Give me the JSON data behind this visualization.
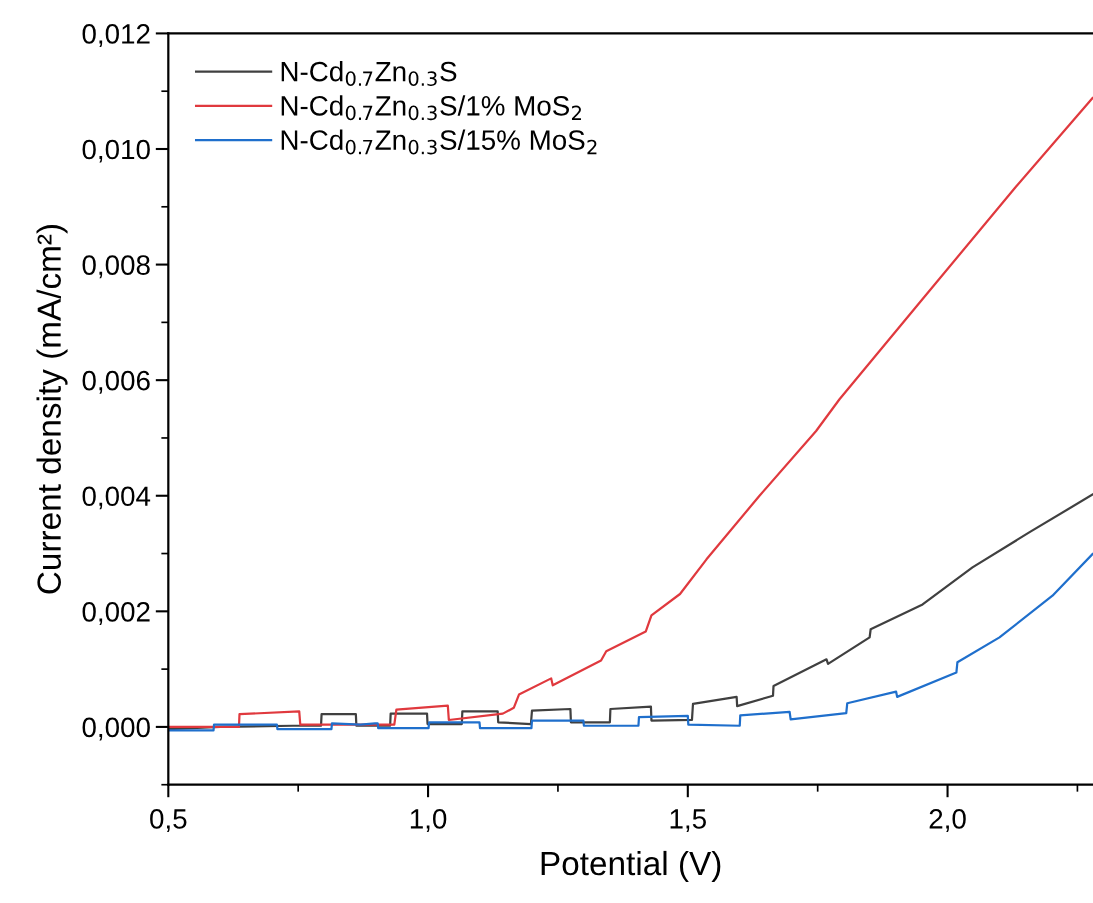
{
  "chart_data": {
    "type": "line",
    "xlabel": "Potential (V)",
    "ylabel": "Current density (mA/cm²)",
    "xlim": [
      0.5,
      2.28
    ],
    "ylim": [
      -0.001,
      0.012
    ],
    "xticks": [
      {
        "value": 0.5,
        "label": "0,5"
      },
      {
        "value": 0.75,
        "label": null
      },
      {
        "value": 1.0,
        "label": "1,0"
      },
      {
        "value": 1.25,
        "label": null
      },
      {
        "value": 1.5,
        "label": "1,5"
      },
      {
        "value": 1.75,
        "label": null
      },
      {
        "value": 2.0,
        "label": "2,0"
      },
      {
        "value": 2.25,
        "label": null
      }
    ],
    "yticks": [
      {
        "value": -0.001,
        "label": null
      },
      {
        "value": 0.0,
        "label": "0,000"
      },
      {
        "value": 0.001,
        "label": null
      },
      {
        "value": 0.002,
        "label": "0,002"
      },
      {
        "value": 0.003,
        "label": null
      },
      {
        "value": 0.004,
        "label": "0,004"
      },
      {
        "value": 0.005,
        "label": null
      },
      {
        "value": 0.006,
        "label": "0,006"
      },
      {
        "value": 0.007,
        "label": null
      },
      {
        "value": 0.008,
        "label": "0,008"
      },
      {
        "value": 0.009,
        "label": null
      },
      {
        "value": 0.01,
        "label": "0,010"
      },
      {
        "value": 0.011,
        "label": null
      },
      {
        "value": 0.012,
        "label": "0,012"
      }
    ],
    "grid": false,
    "legend": "top left",
    "marker": "none",
    "line_style": "solid",
    "series": [
      {
        "name": "N-Cd$_{0.7}$Zn$_{0.3}$S",
        "color": "#404040",
        "x": [
          0.5,
          0.6,
          0.74,
          0.794,
          0.795,
          0.861,
          0.862,
          0.927,
          0.928,
          0.998,
          0.999,
          1.065,
          1.066,
          1.134,
          1.135,
          1.198,
          1.2,
          1.274,
          1.275,
          1.35,
          1.351,
          1.429,
          1.43,
          1.508,
          1.51,
          1.594,
          1.595,
          1.664,
          1.665,
          1.767,
          1.77,
          1.85,
          1.852,
          1.952,
          2.048,
          2.158,
          2.279
        ],
        "values": [
          -4e-05,
          0.0,
          2e-05,
          2e-05,
          0.00022,
          0.00022,
          2e-05,
          2e-05,
          0.00023,
          0.00023,
          5e-05,
          5e-05,
          0.00027,
          0.00027,
          8e-05,
          5e-05,
          0.00028,
          0.00031,
          8e-05,
          8e-05,
          0.00031,
          0.00035,
          0.00011,
          0.00012,
          0.0004,
          0.00052,
          0.00036,
          0.00054,
          0.00071,
          0.00117,
          0.00109,
          0.00155,
          0.00169,
          0.00212,
          0.00276,
          0.00337,
          0.00402
        ]
      },
      {
        "name": "N-Cd$_{0.7}$Zn$_{0.3}$S/1% MoS$_{2}$",
        "color": "#e0393e",
        "x": [
          0.5,
          0.636,
          0.637,
          0.752,
          0.754,
          0.935,
          0.939,
          1.038,
          1.04,
          1.144,
          1.165,
          1.175,
          1.237,
          1.24,
          1.333,
          1.343,
          1.419,
          1.43,
          1.485,
          1.536,
          1.638,
          1.747,
          1.792,
          1.946,
          2.132,
          2.279
        ],
        "values": [
          0.0,
          0.0,
          0.00022,
          0.00027,
          4e-05,
          4e-05,
          0.0003,
          0.00037,
          0.00012,
          0.00023,
          0.00033,
          0.00056,
          0.00084,
          0.00072,
          0.00115,
          0.00131,
          0.00165,
          0.00193,
          0.0023,
          0.0029,
          0.004,
          0.00512,
          0.00567,
          0.00734,
          0.00935,
          0.01088
        ]
      },
      {
        "name": "N-Cd$_{0.7}$Zn$_{0.3}$S/15% MoS$_{2}$",
        "color": "#1f6fcc",
        "x": [
          0.5,
          0.587,
          0.588,
          0.709,
          0.71,
          0.814,
          0.815,
          0.87,
          0.898,
          0.903,
          0.904,
          1.001,
          1.002,
          1.099,
          1.1,
          1.199,
          1.2,
          1.299,
          1.3,
          1.405,
          1.406,
          1.5,
          1.501,
          1.6,
          1.601,
          1.696,
          1.698,
          1.805,
          1.807,
          1.901,
          1.903,
          2.017,
          2.019,
          2.1,
          2.202,
          2.279
        ],
        "values": [
          -6e-05,
          -6e-05,
          4e-05,
          4e-05,
          -4e-05,
          -4e-05,
          6e-05,
          4e-05,
          6e-05,
          6e-05,
          -2e-05,
          -2e-05,
          8e-05,
          8e-05,
          -2e-05,
          -2e-05,
          0.00011,
          0.00011,
          2e-05,
          2e-05,
          0.00017,
          0.00019,
          4e-05,
          2e-05,
          0.0002,
          0.00026,
          0.00013,
          0.00024,
          0.00041,
          0.00061,
          0.00052,
          0.00094,
          0.00112,
          0.00155,
          0.00227,
          0.00299
        ]
      }
    ]
  }
}
